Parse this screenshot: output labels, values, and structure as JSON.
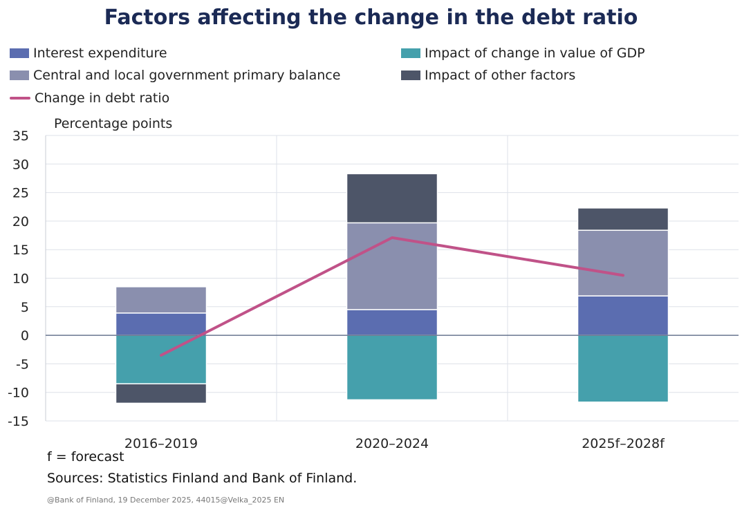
{
  "title": "Factors affecting the change in the debt ratio",
  "legend": [
    {
      "label": "Interest expenditure",
      "type": "box",
      "color": "#5b6db0"
    },
    {
      "label": "Impact of change in value of GDP",
      "type": "box",
      "color": "#45a0ac"
    },
    {
      "label": "Central and local government primary balance",
      "type": "box",
      "color": "#8a8fae"
    },
    {
      "label": "Impact of other factors",
      "type": "box",
      "color": "#4d5568"
    },
    {
      "label": "Change in debt ratio",
      "type": "line",
      "color": "#c05288"
    }
  ],
  "notes": {
    "forecast": "f = forecast",
    "sources": "Sources: Statistics Finland and Bank of Finland."
  },
  "footer": "@Bank of Finland, 19 December 2025, 44015@Velka_2025 EN",
  "chart_data": {
    "type": "bar",
    "stacked": true,
    "title": "Factors affecting the change in the debt ratio",
    "ylabel": "Percentage points",
    "xlabel": "",
    "ylim": [
      -15,
      35
    ],
    "yticks": [
      35,
      30,
      25,
      20,
      15,
      10,
      5,
      0,
      -5,
      -10,
      -15
    ],
    "grid": true,
    "legend_position": "top",
    "categories": [
      "2016–2019",
      "2020–2024",
      "2025f–2028f"
    ],
    "series": [
      {
        "name": "Interest expenditure",
        "kind": "bar",
        "color": "#5b6db0",
        "values": [
          3.9,
          4.5,
          6.9
        ]
      },
      {
        "name": "Impact of change in value of GDP",
        "kind": "bar",
        "color": "#45a0ac",
        "values": [
          -8.5,
          -11.3,
          -11.7
        ]
      },
      {
        "name": "Central and local government primary balance",
        "kind": "bar",
        "color": "#8a8fae",
        "values": [
          4.6,
          15.2,
          11.5
        ]
      },
      {
        "name": "Impact of other factors",
        "kind": "bar",
        "color": "#4d5568",
        "values": [
          -3.4,
          8.6,
          3.9
        ]
      },
      {
        "name": "Change in debt ratio",
        "kind": "line",
        "color": "#c05288",
        "values": [
          -3.5,
          17.1,
          10.5
        ]
      }
    ]
  }
}
